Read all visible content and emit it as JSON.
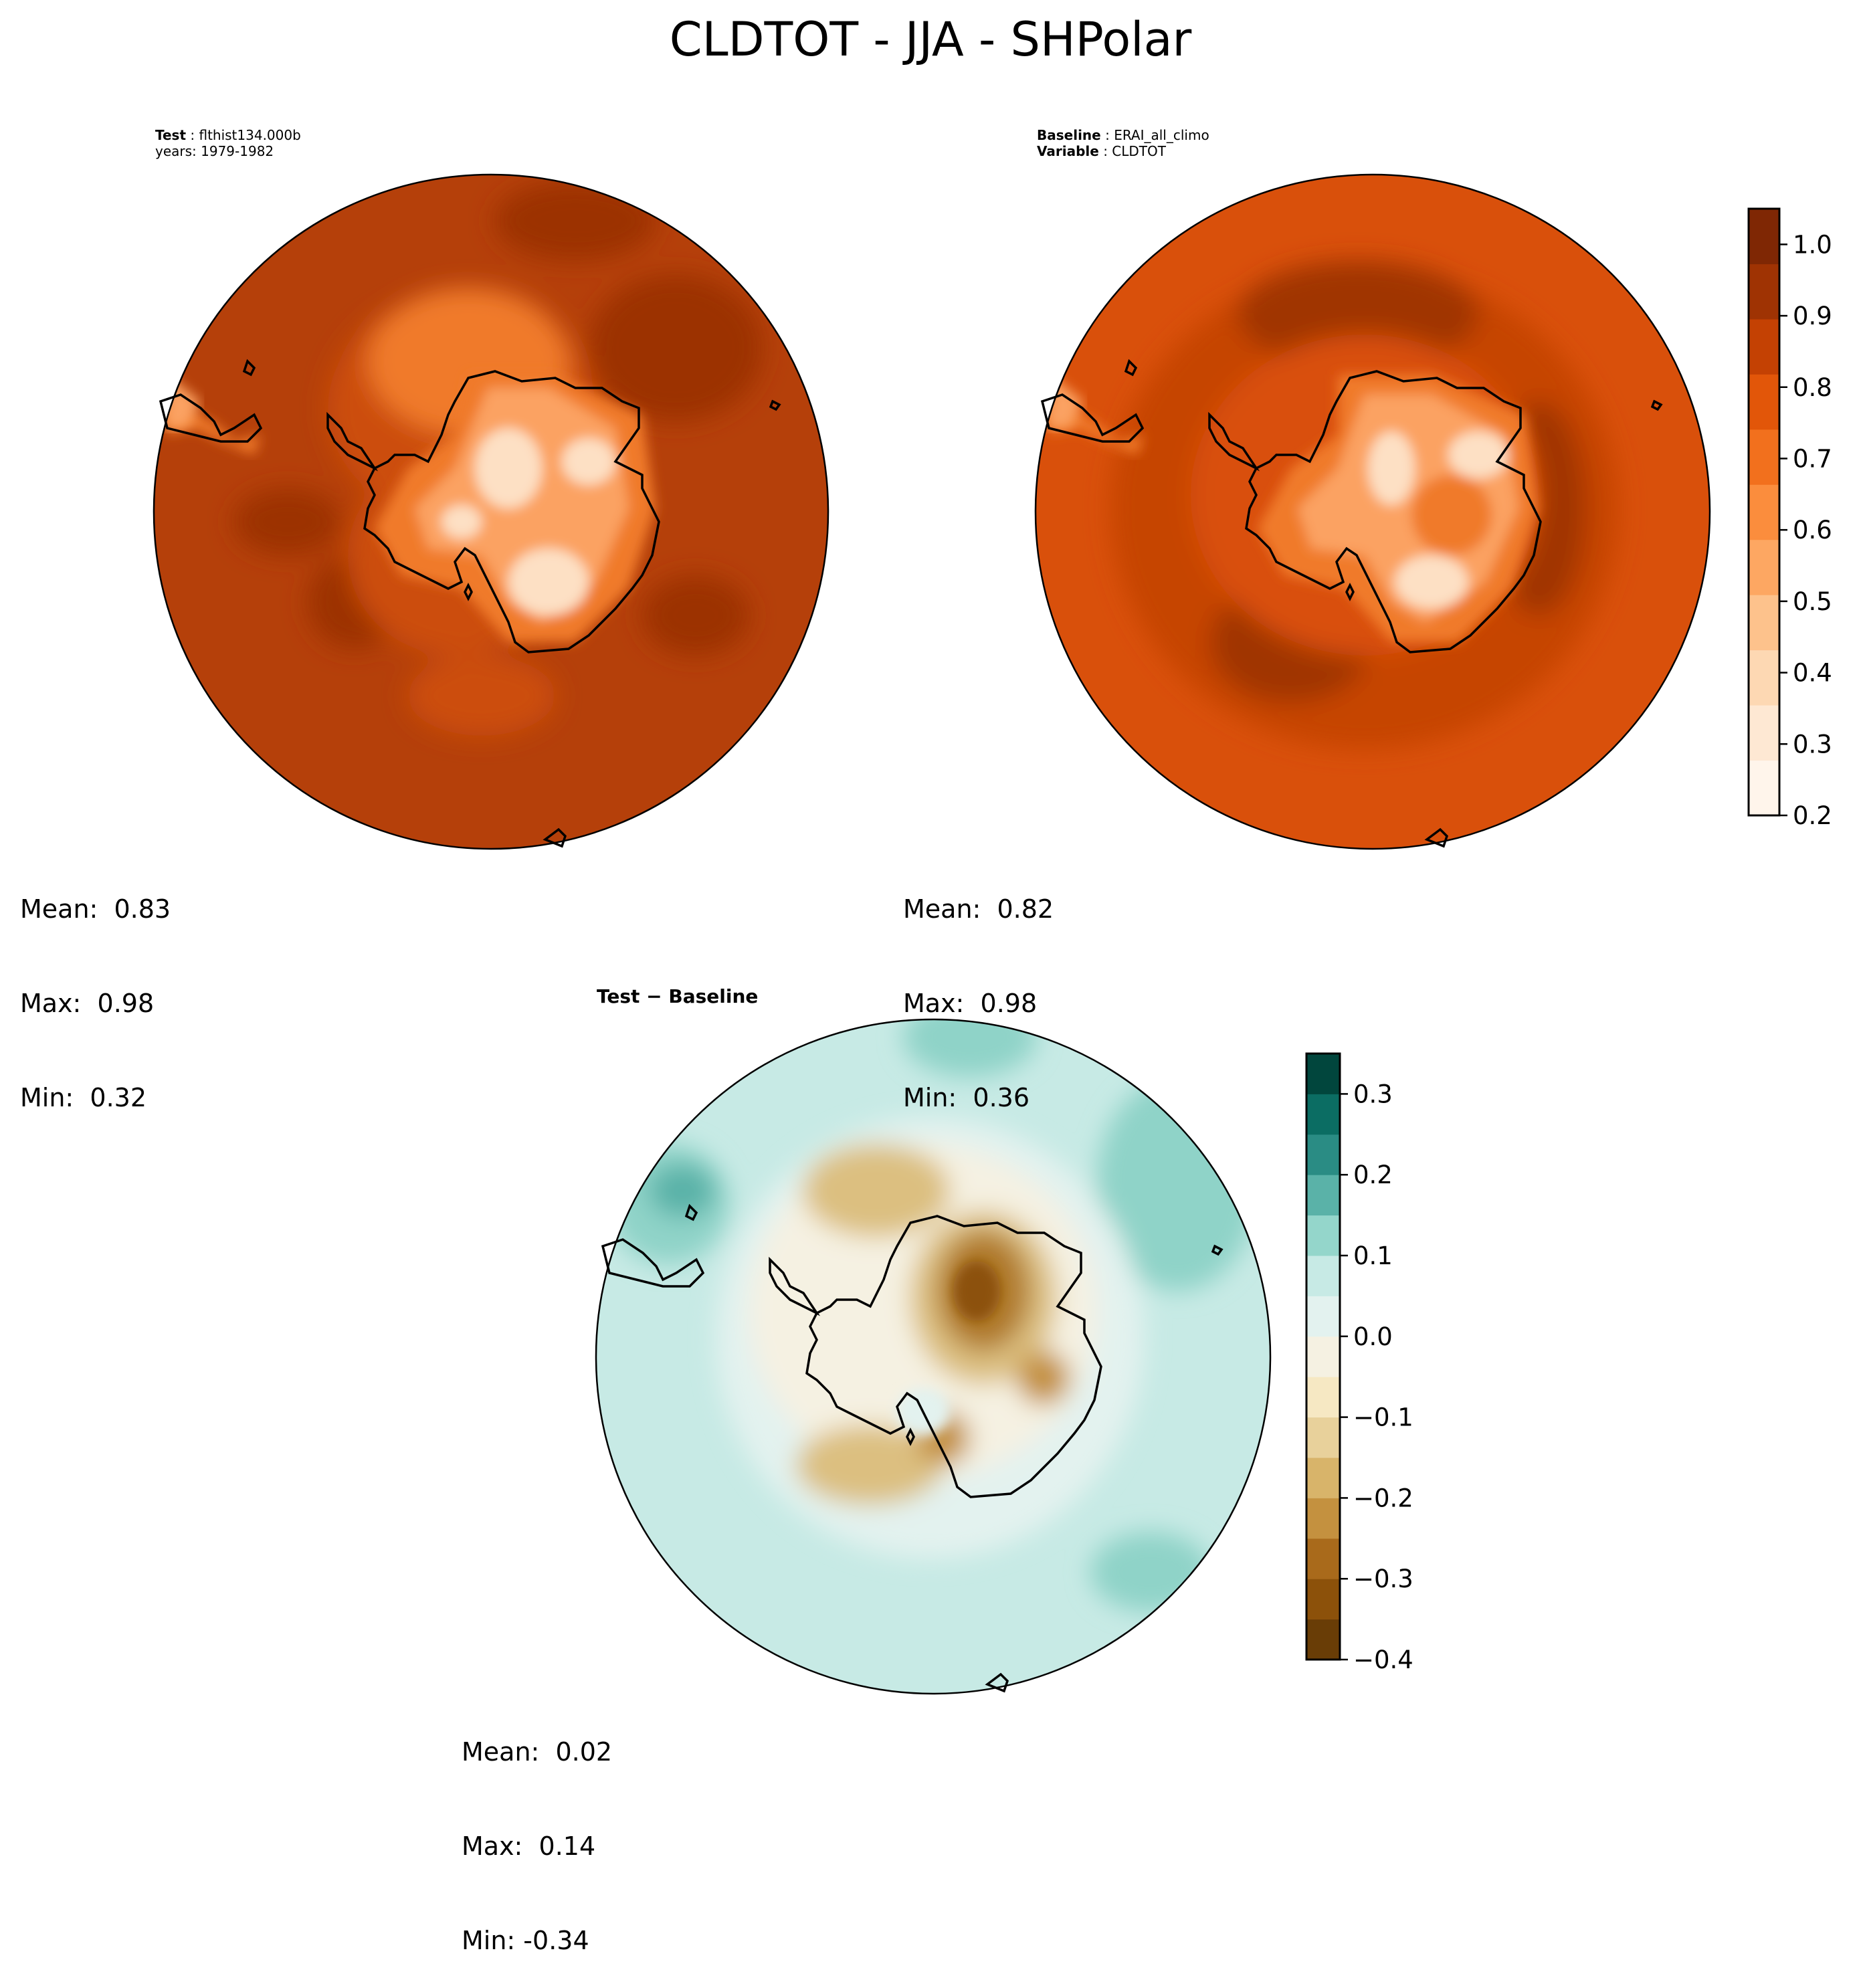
{
  "title": "CLDTOT - JJA - SHPolar",
  "panels": {
    "test": {
      "header_line1_bold": "Test",
      "header_line1_rest": " : flthist134.000b",
      "header_line2": "years: 1979-1982",
      "stats": {
        "mean": "Mean:  0.83",
        "max": "Max:  0.98",
        "min": "Min:  0.32"
      }
    },
    "baseline": {
      "header_line1_bold": "Baseline",
      "header_line1_rest": " : ERAI_all_climo",
      "header_line2_bold": "Variable",
      "header_line2_rest": " : CLDTOT",
      "stats": {
        "mean": "Mean:  0.82",
        "max": "Max:  0.98",
        "min": "Min:  0.36"
      }
    },
    "difference": {
      "title": "Test − Baseline",
      "stats": {
        "mean": "Mean:  0.02",
        "max": "Max:  0.14",
        "min": "Min: -0.34"
      }
    }
  },
  "colorbars": {
    "main": {
      "ticks": [
        "0.2",
        "0.3",
        "0.4",
        "0.5",
        "0.6",
        "0.7",
        "0.8",
        "0.9",
        "1.0"
      ],
      "tick_values": [
        0.2,
        0.3,
        0.4,
        0.5,
        0.6,
        0.7,
        0.8,
        0.9,
        1.0
      ],
      "range": [
        0.2,
        1.05
      ],
      "colors": [
        "#fff5eb",
        "#fee8d3",
        "#fdd8b3",
        "#fdc28c",
        "#fda762",
        "#fb8d3d",
        "#f2701d",
        "#e25609",
        "#c44103",
        "#9f3303",
        "#7f2704"
      ]
    },
    "diff": {
      "ticks": [
        "−0.4",
        "−0.3",
        "−0.2",
        "−0.1",
        "0.0",
        "0.1",
        "0.2",
        "0.3"
      ],
      "tick_values": [
        -0.4,
        -0.3,
        -0.2,
        -0.1,
        0.0,
        0.1,
        0.2,
        0.3
      ],
      "range": [
        -0.4,
        0.35
      ],
      "colors": [
        "#693d06",
        "#8c510a",
        "#a96a1b",
        "#c4913f",
        "#d8b46a",
        "#e8d19b",
        "#f6e8c3",
        "#f5f1e2",
        "#e3f2ef",
        "#c7eae5",
        "#94d6cb",
        "#5ab2a8",
        "#2a8c84",
        "#0b6d63",
        "#01463d"
      ]
    }
  },
  "map_colors": {
    "main_base": "#b5400a",
    "main_dark": "#9c3305",
    "main_mid": "#cc4d0a",
    "main_light": "#f07a2a",
    "main_lighter": "#fba262",
    "main_pale": "#fde0c4",
    "diff_base": "#c7eae5",
    "diff_neutral": "#f1f6f1",
    "diff_teal": "#8fd3c8",
    "diff_tan": "#dcbf80",
    "diff_brown": "#b07a2a"
  }
}
